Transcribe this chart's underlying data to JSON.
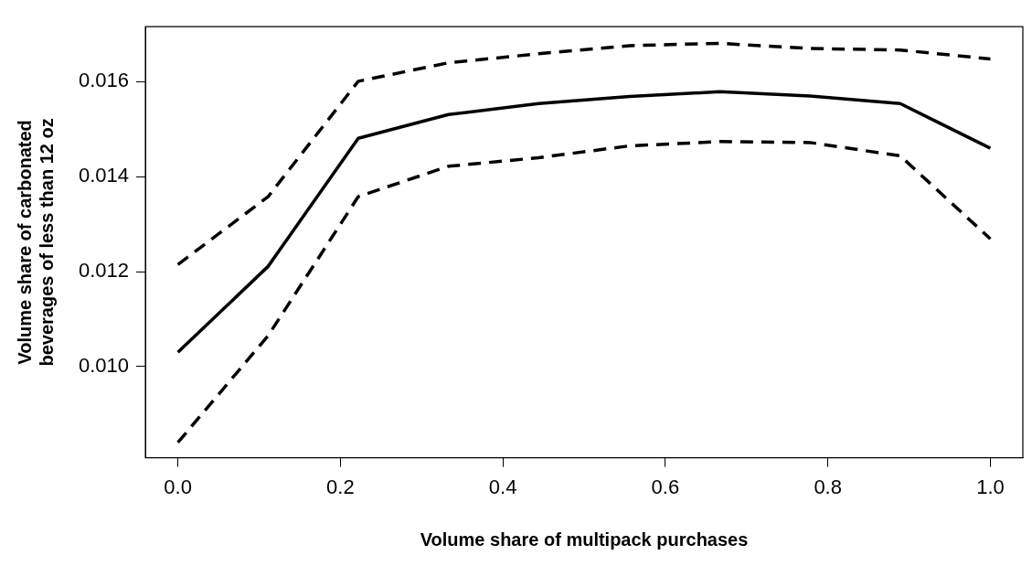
{
  "chart_data": {
    "type": "line",
    "xlabel": "Volume share of multipack purchases",
    "ylabel": "Volume share of carbonated beverages of less than 12 oz",
    "x": [
      0,
      0.111,
      0.222,
      0.333,
      0.444,
      0.556,
      0.667,
      0.778,
      0.889,
      1.0
    ],
    "series": [
      {
        "color": "#000000",
        "line_style": "solid",
        "values": [
          0.0103,
          0.01211,
          0.01481,
          0.01531,
          0.01554,
          0.01569,
          0.01579,
          0.0157,
          0.01554,
          0.0146
        ]
      },
      {
        "color": "#000000",
        "line_style": "dashed",
        "values": [
          0.01215,
          0.01358,
          0.01601,
          0.0164,
          0.01659,
          0.01676,
          0.01681,
          0.0167,
          0.01667,
          0.01648
        ]
      },
      {
        "color": "#000000",
        "line_style": "dashed",
        "values": [
          0.0084,
          0.01065,
          0.01358,
          0.01422,
          0.0144,
          0.01465,
          0.01474,
          0.01472,
          0.01444,
          0.01269
        ]
      }
    ],
    "xlim": [
      -0.04,
      1.04
    ],
    "ylim": [
      0.00808,
      0.01716
    ],
    "xticks": [
      {
        "value": 0,
        "label": "0.0"
      },
      {
        "value": 0.2,
        "label": "0.2"
      },
      {
        "value": 0.4,
        "label": "0.4"
      },
      {
        "value": 0.6,
        "label": "0.6"
      },
      {
        "value": 0.8,
        "label": "0.8"
      },
      {
        "value": 1,
        "label": "1.0"
      }
    ],
    "yticks": [
      {
        "value": 0.01,
        "label": "0.010"
      },
      {
        "value": 0.012,
        "label": "0.012"
      },
      {
        "value": 0.014,
        "label": "0.014"
      },
      {
        "value": 0.016,
        "label": "0.016"
      }
    ],
    "grid": false,
    "legend": false,
    "marker": "none"
  }
}
